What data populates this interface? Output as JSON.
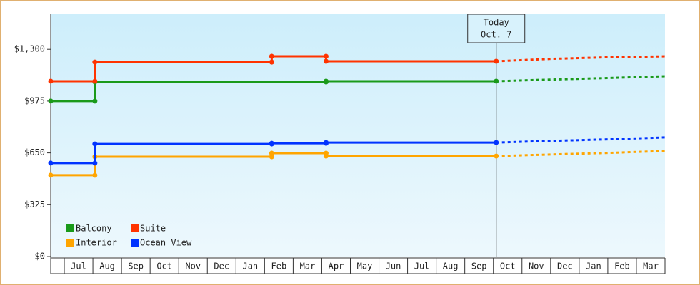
{
  "chart_data": {
    "type": "step-line",
    "xlim": [
      -0.475,
      21
    ],
    "ylim": [
      0,
      1520
    ],
    "xticks": [
      {
        "value": 0.5,
        "label": "Jul"
      },
      {
        "value": 1.5,
        "label": "Aug"
      },
      {
        "value": 2.5,
        "label": "Sep"
      },
      {
        "value": 3.5,
        "label": "Oct"
      },
      {
        "value": 4.5,
        "label": "Nov"
      },
      {
        "value": 5.5,
        "label": "Dec"
      },
      {
        "value": 6.5,
        "label": "Jan"
      },
      {
        "value": 7.5,
        "label": "Feb"
      },
      {
        "value": 8.5,
        "label": "Mar"
      },
      {
        "value": 9.5,
        "label": "Apr"
      },
      {
        "value": 10.5,
        "label": "May"
      },
      {
        "value": 11.5,
        "label": "Jun"
      },
      {
        "value": 12.5,
        "label": "Jul"
      },
      {
        "value": 13.5,
        "label": "Aug"
      },
      {
        "value": 14.5,
        "label": "Sep"
      },
      {
        "value": 15.5,
        "label": "Oct"
      },
      {
        "value": 16.5,
        "label": "Nov"
      },
      {
        "value": 17.5,
        "label": "Dec"
      },
      {
        "value": 18.5,
        "label": "Jan"
      },
      {
        "value": 19.5,
        "label": "Feb"
      },
      {
        "value": 20.5,
        "label": "Mar"
      }
    ],
    "yticks": [
      {
        "value": 0,
        "label": "$0"
      },
      {
        "value": 325,
        "label": "$325"
      },
      {
        "value": 650,
        "label": "$650"
      },
      {
        "value": 975,
        "label": "$975"
      },
      {
        "value": 1300,
        "label": "$1,300"
      }
    ],
    "annotation": {
      "x": 15.1,
      "lines": [
        "Today",
        "Oct. 7"
      ]
    },
    "legend": "bottom-left",
    "series": [
      {
        "name": "Balcony",
        "color": "#1a9a1a",
        "x": [
          -0.475,
          1.07,
          9.15,
          15.1
        ],
        "values": [
          975,
          1095,
          1100,
          1100
        ],
        "forecast_x": [
          15.1,
          17,
          19,
          21
        ],
        "forecast_values": [
          1100,
          1110,
          1120,
          1131
        ]
      },
      {
        "name": "Suite",
        "color": "#ff3300",
        "x": [
          -0.475,
          1.07,
          7.25,
          9.15,
          15.1
        ],
        "values": [
          1100,
          1220,
          1256,
          1225,
          1225
        ],
        "forecast_x": [
          15.1,
          17,
          19,
          21
        ],
        "forecast_values": [
          1225,
          1240,
          1250,
          1256
        ]
      },
      {
        "name": "Interior",
        "color": "#ffa500",
        "x": [
          -0.475,
          1.07,
          7.25,
          9.15,
          15.1
        ],
        "values": [
          510,
          626,
          648,
          630,
          630
        ],
        "forecast_x": [
          15.1,
          17,
          19,
          21
        ],
        "forecast_values": [
          630,
          640,
          650,
          662
        ]
      },
      {
        "name": "Ocean View",
        "color": "#0033ff",
        "x": [
          -0.475,
          1.07,
          7.25,
          9.15,
          15.1
        ],
        "values": [
          586,
          706,
          710,
          715,
          715
        ],
        "forecast_x": [
          15.1,
          17,
          19,
          21
        ],
        "forecast_values": [
          715,
          725,
          735,
          747
        ]
      }
    ]
  }
}
